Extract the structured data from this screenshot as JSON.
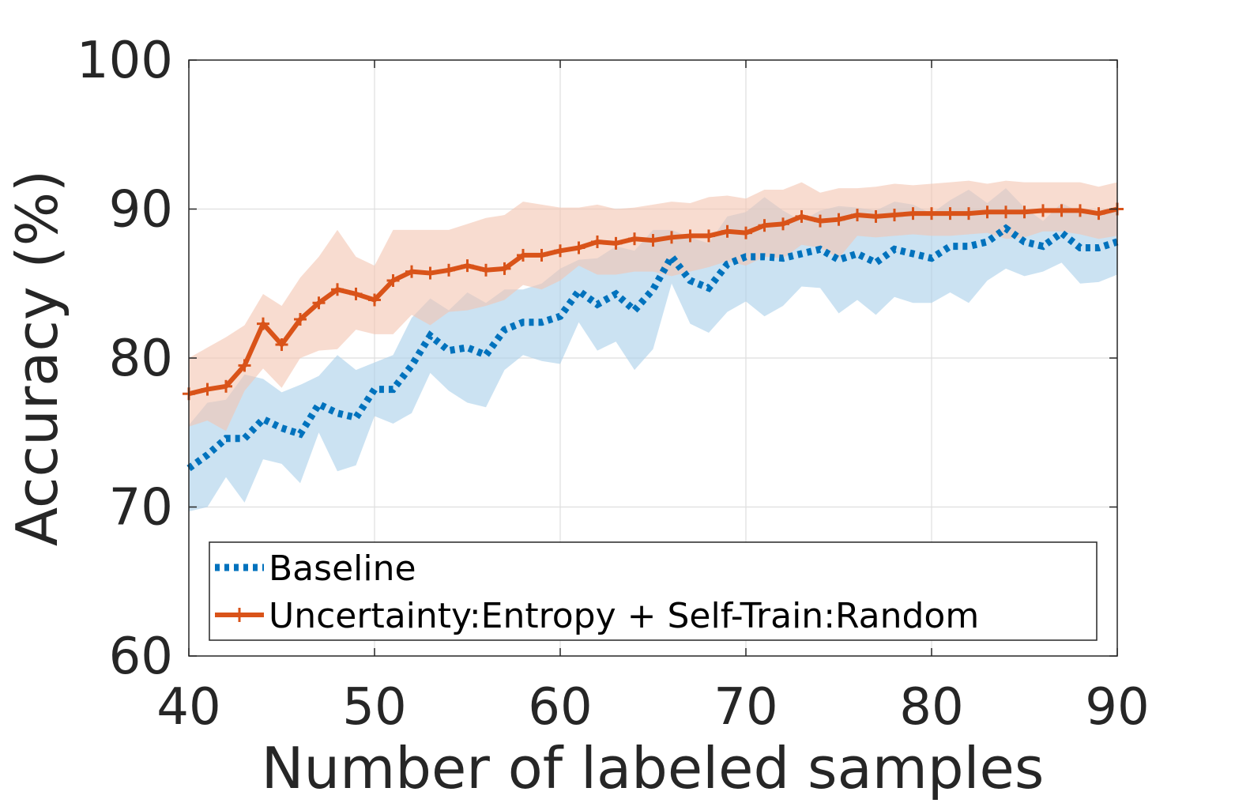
{
  "chart_data": {
    "type": "line",
    "title": "",
    "xlabel": "Number of labeled samples",
    "ylabel": "Accuracy (%)",
    "xlim": [
      40,
      90
    ],
    "ylim": [
      60,
      100
    ],
    "xticks": [
      40,
      50,
      60,
      70,
      80,
      90
    ],
    "yticks": [
      60,
      70,
      80,
      90,
      100
    ],
    "xtick_labels": [
      "40",
      "50",
      "60",
      "70",
      "80",
      "90"
    ],
    "ytick_labels": [
      "60",
      "70",
      "80",
      "90",
      "100"
    ],
    "grid": true,
    "legend_position": "bottom-left",
    "x": [
      40,
      41,
      42,
      43,
      44,
      45,
      46,
      47,
      48,
      49,
      50,
      51,
      52,
      53,
      54,
      55,
      56,
      57,
      58,
      59,
      60,
      61,
      62,
      63,
      64,
      65,
      66,
      67,
      68,
      69,
      70,
      71,
      72,
      73,
      74,
      75,
      76,
      77,
      78,
      79,
      80,
      81,
      82,
      83,
      84,
      85,
      86,
      87,
      88,
      89,
      90
    ],
    "series": [
      {
        "name": "Baseline",
        "color": "#0072BD",
        "line_style": "dotted",
        "values": [
          72.6,
          73.5,
          74.6,
          74.6,
          75.9,
          75.3,
          74.9,
          76.9,
          76.3,
          76.0,
          77.9,
          77.9,
          79.5,
          81.5,
          80.5,
          80.7,
          80.2,
          81.9,
          82.4,
          82.4,
          82.8,
          84.5,
          83.6,
          84.3,
          83.2,
          84.6,
          86.8,
          85.2,
          84.7,
          86.3,
          86.8,
          86.8,
          86.7,
          87.0,
          87.3,
          86.6,
          87.0,
          86.4,
          87.3,
          87.0,
          86.7,
          87.5,
          87.5,
          87.8,
          88.7,
          87.8,
          87.5,
          88.4,
          87.4,
          87.4,
          87.8
        ],
        "lower": [
          69.7,
          70.0,
          72.0,
          70.3,
          73.2,
          72.9,
          71.6,
          75.0,
          72.4,
          72.8,
          76.1,
          75.6,
          76.3,
          79.0,
          77.8,
          77.0,
          76.7,
          79.2,
          80.2,
          79.8,
          79.6,
          82.4,
          80.5,
          81.1,
          79.2,
          80.6,
          85.0,
          82.3,
          81.7,
          83.1,
          83.8,
          82.8,
          83.5,
          84.8,
          84.7,
          83.0,
          83.9,
          82.9,
          84.1,
          83.7,
          83.7,
          84.4,
          83.7,
          85.2,
          86.0,
          85.5,
          85.8,
          86.4,
          85.0,
          85.1,
          85.6
        ],
        "upper": [
          75.5,
          77.0,
          77.2,
          78.9,
          78.6,
          77.7,
          78.2,
          78.8,
          80.2,
          79.2,
          79.7,
          80.2,
          82.7,
          84.0,
          83.2,
          84.4,
          83.7,
          84.6,
          84.6,
          85.0,
          86.0,
          86.6,
          86.7,
          87.5,
          87.2,
          88.6,
          88.6,
          88.1,
          87.7,
          89.5,
          89.8,
          90.8,
          89.9,
          89.2,
          89.9,
          90.2,
          90.1,
          89.9,
          90.5,
          90.3,
          89.7,
          90.6,
          91.3,
          90.4,
          91.4,
          90.1,
          89.2,
          90.4,
          89.8,
          89.7,
          90.0
        ],
        "fill_color": "#A9CFEA"
      },
      {
        "name": "Uncertainty:Entropy + Self-Train:Random",
        "color": "#D95319",
        "line_style": "solid",
        "marker": "+",
        "values": [
          77.6,
          77.9,
          78.1,
          79.5,
          82.3,
          80.9,
          82.6,
          83.7,
          84.6,
          84.3,
          83.9,
          85.2,
          85.8,
          85.7,
          85.9,
          86.2,
          85.9,
          86.0,
          86.9,
          86.9,
          87.2,
          87.4,
          87.8,
          87.7,
          88.0,
          87.9,
          88.1,
          88.2,
          88.2,
          88.5,
          88.4,
          88.9,
          89.0,
          89.5,
          89.2,
          89.3,
          89.6,
          89.5,
          89.6,
          89.7,
          89.7,
          89.7,
          89.7,
          89.8,
          89.8,
          89.8,
          89.9,
          89.9,
          89.9,
          89.7,
          90.0
        ],
        "lower": [
          75.4,
          75.8,
          75.1,
          77.8,
          79.3,
          78.0,
          80.0,
          80.5,
          80.6,
          81.9,
          81.6,
          81.6,
          82.9,
          82.2,
          83.1,
          83.2,
          83.5,
          83.9,
          84.9,
          84.6,
          85.2,
          86.2,
          85.6,
          85.6,
          85.8,
          85.8,
          85.5,
          85.8,
          86.1,
          86.5,
          86.2,
          86.8,
          86.7,
          87.6,
          87.4,
          86.7,
          88.2,
          88.1,
          88.2,
          88.3,
          88.2,
          88.2,
          88.3,
          88.4,
          88.0,
          88.1,
          88.5,
          88.5,
          88.3,
          88.0,
          88.2
        ],
        "upper": [
          80.0,
          80.7,
          81.4,
          82.2,
          84.3,
          83.5,
          85.4,
          86.8,
          88.6,
          86.8,
          86.2,
          88.6,
          88.6,
          88.6,
          88.6,
          89.0,
          89.4,
          89.6,
          90.5,
          90.3,
          90.1,
          90.1,
          90.3,
          90.0,
          90.1,
          90.3,
          90.5,
          90.4,
          90.8,
          90.9,
          90.7,
          91.3,
          91.3,
          91.8,
          91.1,
          91.4,
          91.4,
          91.5,
          91.7,
          91.6,
          91.7,
          91.8,
          91.9,
          91.7,
          91.9,
          91.8,
          91.8,
          91.8,
          91.8,
          91.5,
          91.8
        ],
        "fill_color": "#F3C4B0"
      }
    ]
  }
}
